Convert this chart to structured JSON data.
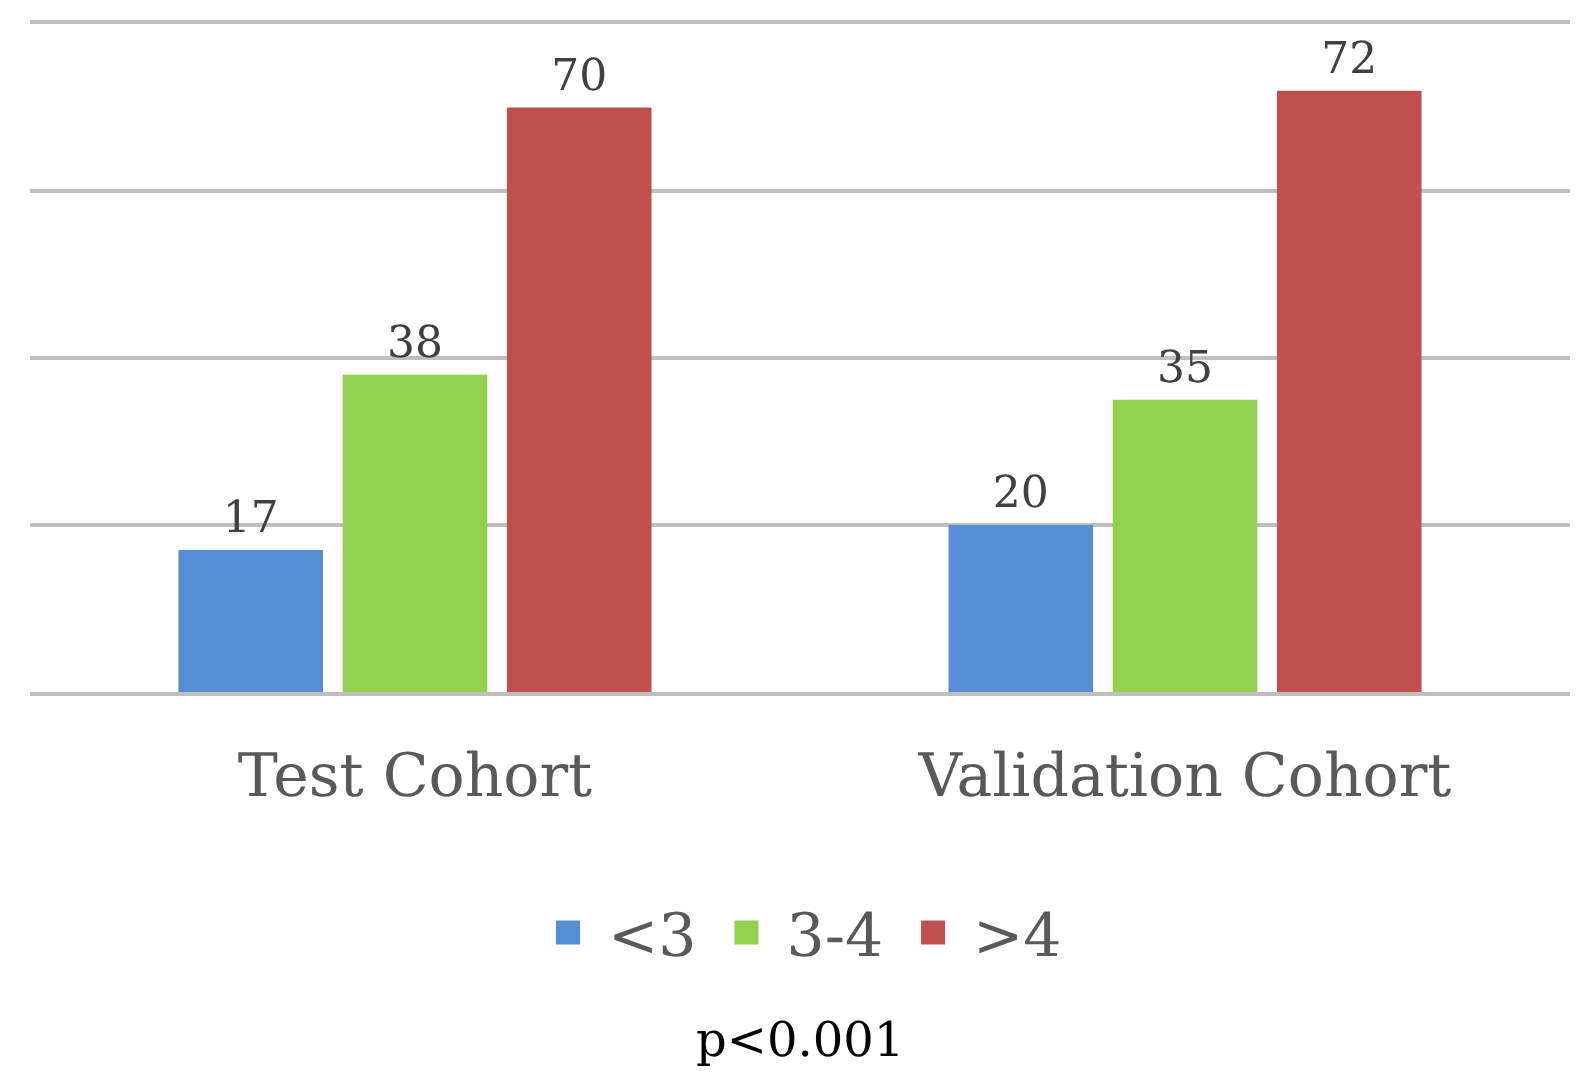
{
  "chart_data": {
    "type": "bar",
    "categories": [
      "Test Cohort",
      "Validation Cohort"
    ],
    "series": [
      {
        "name": "<3",
        "color": "#558ed5",
        "values": [
          17,
          20
        ]
      },
      {
        "name": "3-4",
        "color": "#92d050",
        "values": [
          38,
          35
        ]
      },
      {
        "name": ">4",
        "color": "#c0504d",
        "values": [
          70,
          72
        ]
      }
    ],
    "ylim": [
      0,
      80
    ],
    "yticks": [
      {
        "value": 0,
        "label": null
      },
      {
        "value": 20,
        "label": null
      },
      {
        "value": 40,
        "label": null
      },
      {
        "value": 60,
        "label": null
      },
      {
        "value": 80,
        "label": null
      }
    ],
    "tick_labels": "x",
    "grid": "y",
    "data_labels": true,
    "legend": "bottom",
    "annotations": [
      "p<0.001"
    ]
  }
}
